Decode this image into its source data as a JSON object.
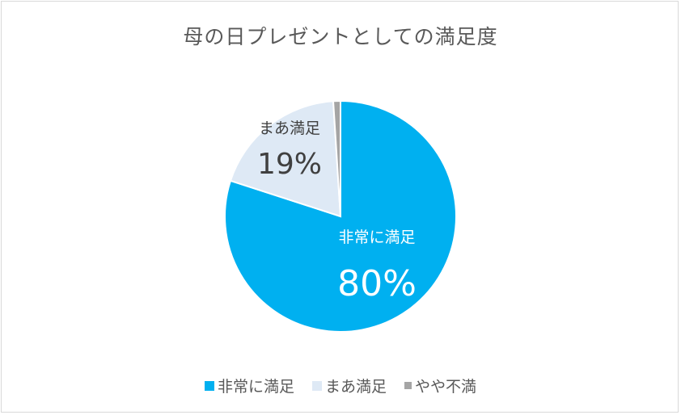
{
  "chart_data": {
    "type": "pie",
    "title": "母の日プレゼントとしての満足度",
    "categories": [
      "非常に満足",
      "まあ満足",
      "やや不満"
    ],
    "values": [
      80,
      19,
      1
    ],
    "data_labels": [
      "80%",
      "19%",
      ""
    ],
    "colors": [
      "#00b0f0",
      "#dee9f5",
      "#a5a5a5"
    ],
    "legend_position": "bottom",
    "start_angle_deg": 0,
    "direction": "clockwise"
  }
}
